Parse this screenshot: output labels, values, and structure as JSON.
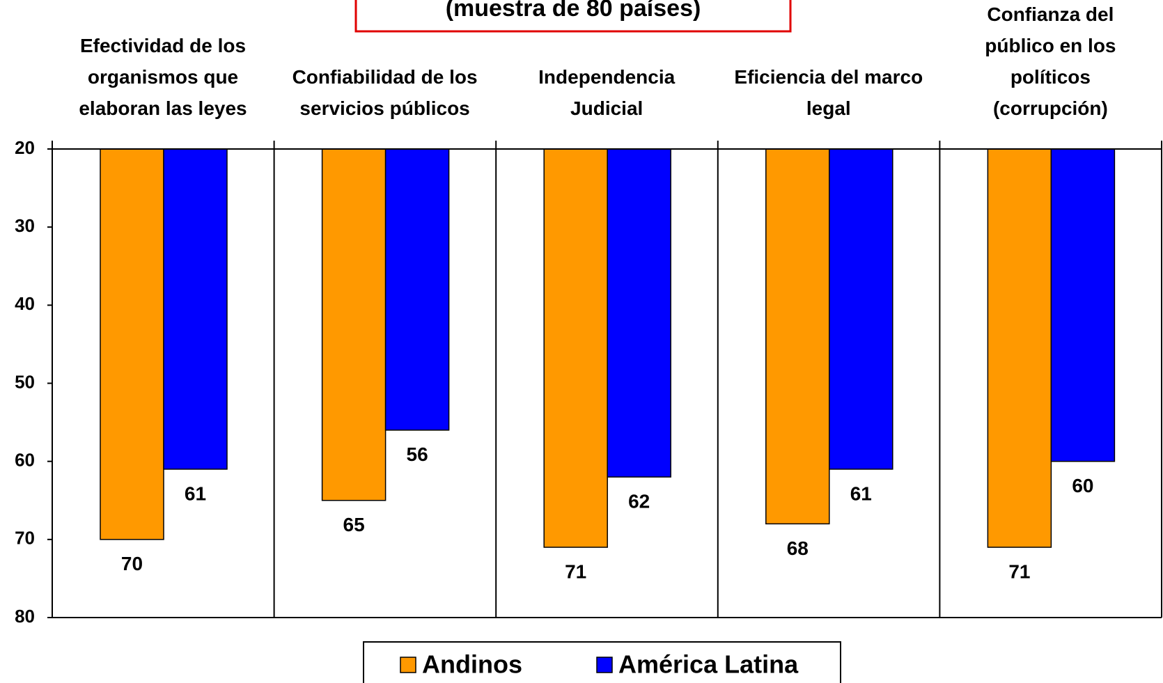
{
  "chart_data": {
    "type": "bar",
    "title": "(muestra de 80 países)",
    "categories": [
      "Efectividad de los\norganismos que\nelaboran las leyes",
      "Confiabilidad de los\nservicios públicos",
      "Independencia\nJudicial",
      "Eficiencia del marco\nlegal",
      "Confianza del\npúblico en los\npolíticos\n(corrupción)"
    ],
    "series": [
      {
        "name": "Andinos",
        "color": "#FF9900",
        "values": [
          70,
          65,
          71,
          68,
          71
        ]
      },
      {
        "name": "América Latina",
        "color": "#0000FF",
        "values": [
          61,
          56,
          62,
          61,
          60
        ]
      }
    ],
    "ylim": [
      20,
      80
    ],
    "yticks": [
      20,
      30,
      40,
      50,
      60,
      70,
      80
    ],
    "y_inverted": true,
    "legend": "bottom"
  }
}
